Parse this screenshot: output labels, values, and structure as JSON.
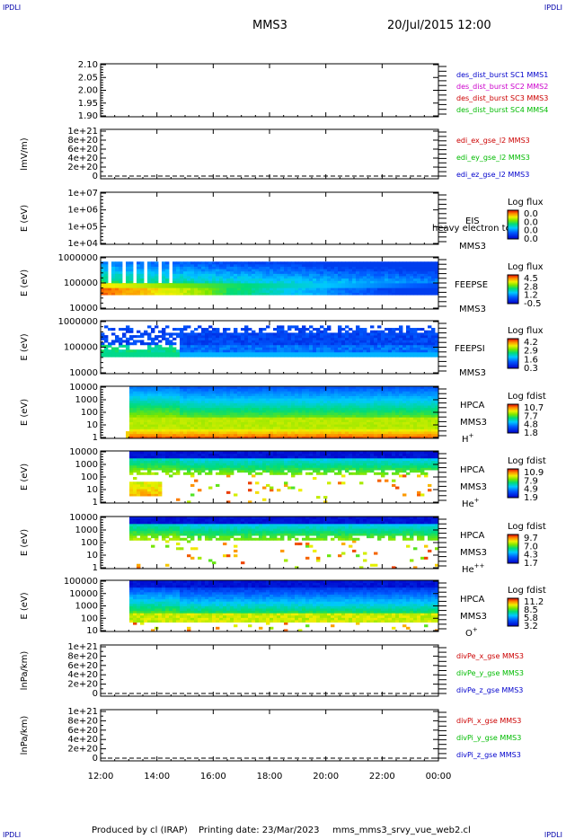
{
  "header": {
    "corner_label": "IPDLI",
    "spacecraft": "MMS3",
    "datetime": "20/Jul/2015 12:00"
  },
  "footer": {
    "produced_by": "Produced by cl (IRAP)",
    "printing_date": "Printing date: 23/Mar/2023",
    "script": "mms_mms3_srvy_vue_web2.cl"
  },
  "colors": {
    "sc1": "#0000cc",
    "sc2": "#cc00cc",
    "sc3": "#cc0000",
    "sc4": "#00bb00"
  },
  "chart_data": {
    "type": "heatmap",
    "x_axis": {
      "ticks": [
        "12:00",
        "14:00",
        "16:00",
        "18:00",
        "20:00",
        "22:00",
        "00:00"
      ],
      "range_hours": [
        12,
        24
      ]
    },
    "panels": [
      {
        "kind": "empty",
        "ylabel": "",
        "yticks": [
          "2.10",
          "2.05",
          "2.00",
          "1.95",
          "1.90"
        ],
        "legend": [
          {
            "text": "des_dist_burst SC1 MMS1",
            "color": "#0000cc"
          },
          {
            "text": "des_dist_burst SC2 MMS2",
            "color": "#cc00cc"
          },
          {
            "text": "des_dist_burst SC3 MMS3",
            "color": "#cc0000"
          },
          {
            "text": "des_dist_burst SC4 MMS4",
            "color": "#00bb00"
          }
        ]
      },
      {
        "kind": "line",
        "ylabel": "lmV/m)",
        "yticks": [
          "1e+21",
          "8e+20",
          "6e+20",
          "4e+20",
          "2e+20",
          "0"
        ],
        "legend": [
          {
            "text": "edi_ex_gse_l2 MMS3",
            "color": "#cc0000"
          },
          {
            "text": "edi_ey_gse_l2 MMS3",
            "color": "#00bb00"
          },
          {
            "text": "edi_ez_gse_l2 MMS3",
            "color": "#0000cc"
          }
        ]
      },
      {
        "kind": "spectro_empty",
        "ylabel": "E (eV)",
        "yticks": [
          "1e+07",
          "1e+06",
          "1e+05",
          "1e+04"
        ],
        "instrument": "EIS",
        "instrument_sub": "heavy electron to",
        "sc": "MMS3",
        "colorbar_title": "Log flux",
        "colorbar_ticks": [
          "0.0",
          "0.0",
          "0.0",
          "0.0"
        ]
      },
      {
        "kind": "spectro",
        "profile": "feepse",
        "ylabel": "E (eV)",
        "yticks": [
          "1000000",
          "100000",
          "10000"
        ],
        "instrument": "FEEPSE",
        "sc": "MMS3",
        "colorbar_title": "Log flux",
        "colorbar_ticks": [
          "4.5",
          "2.8",
          "1.2",
          "-0.5"
        ]
      },
      {
        "kind": "spectro",
        "profile": "feepsi",
        "ylabel": "E (eV)",
        "yticks": [
          "1000000",
          "100000",
          "10000"
        ],
        "instrument": "FEEPSI",
        "sc": "MMS3",
        "colorbar_title": "Log flux",
        "colorbar_ticks": [
          "4.2",
          "2.9",
          "1.6",
          "0.3"
        ]
      },
      {
        "kind": "spectro",
        "profile": "hplus",
        "ylabel": "E (eV)",
        "yticks": [
          "10000",
          "1000",
          "100",
          "10",
          "1"
        ],
        "instrument": "HPCA",
        "sc": "MMS3",
        "species": "H+",
        "colorbar_title": "Log fdist",
        "colorbar_ticks": [
          "10.7",
          "7.7",
          "4.8",
          "1.8"
        ]
      },
      {
        "kind": "spectro",
        "profile": "heplus",
        "ylabel": "E (eV)",
        "yticks": [
          "10000",
          "1000",
          "100",
          "10",
          "1"
        ],
        "instrument": "HPCA",
        "sc": "MMS3",
        "species": "He+",
        "colorbar_title": "Log fdist",
        "colorbar_ticks": [
          "10.9",
          "7.9",
          "4.9",
          "1.9"
        ]
      },
      {
        "kind": "spectro",
        "profile": "heplusplus",
        "ylabel": "E (eV)",
        "yticks": [
          "10000",
          "1000",
          "100",
          "10",
          "1"
        ],
        "instrument": "HPCA",
        "sc": "MMS3",
        "species": "He++",
        "colorbar_title": "Log fdist",
        "colorbar_ticks": [
          "9.7",
          "7.0",
          "4.3",
          "1.7"
        ]
      },
      {
        "kind": "spectro",
        "profile": "oplus",
        "ylabel": "E (eV)",
        "yticks": [
          "100000",
          "10000",
          "1000",
          "100",
          "10"
        ],
        "instrument": "HPCA",
        "sc": "MMS3",
        "species": "O+",
        "colorbar_title": "Log fdist",
        "colorbar_ticks": [
          "11.2",
          "8.5",
          "5.8",
          "3.2"
        ]
      },
      {
        "kind": "line",
        "ylabel": "lnPa/km)",
        "yticks": [
          "1e+21",
          "8e+20",
          "6e+20",
          "4e+20",
          "2e+20",
          "0"
        ],
        "legend": [
          {
            "text": "divPe_x_gse MMS3",
            "color": "#cc0000"
          },
          {
            "text": "divPe_y_gse MMS3",
            "color": "#00bb00"
          },
          {
            "text": "divPe_z_gse MMS3",
            "color": "#0000cc"
          }
        ]
      },
      {
        "kind": "line",
        "ylabel": "lnPa/km)",
        "yticks": [
          "1e+21",
          "8e+20",
          "6e+20",
          "4e+20",
          "2e+20",
          "0"
        ],
        "legend": [
          {
            "text": "divPi_x_gse MMS3",
            "color": "#cc0000"
          },
          {
            "text": "divPi_y_gse MMS3",
            "color": "#00bb00"
          },
          {
            "text": "divPi_z_gse MMS3",
            "color": "#0000cc"
          }
        ]
      }
    ]
  }
}
